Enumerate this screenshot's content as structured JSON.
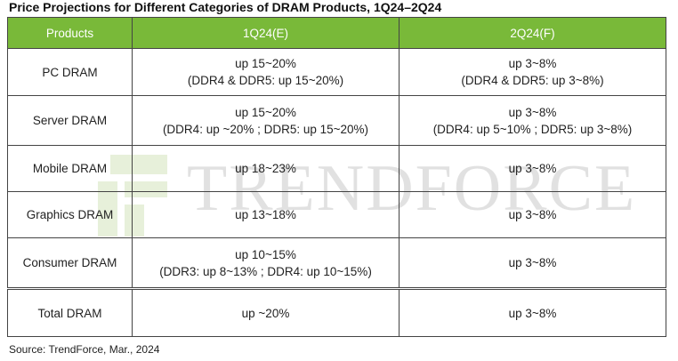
{
  "title": "Price Projections for Different Categories of DRAM Products, 1Q24–2Q24",
  "table": {
    "headers": [
      "Products",
      "1Q24(E)",
      "2Q24(F)"
    ],
    "rows": [
      {
        "product": "PC DRAM",
        "q1": [
          "up 15~20%",
          "(DDR4 & DDR5: up 15~20%)"
        ],
        "q2": [
          "up 3~8%",
          "(DDR4 & DDR5: up 3~8%)"
        ]
      },
      {
        "product": "Server DRAM",
        "q1": [
          "up 15~20%",
          "(DDR4: up ~20% ; DDR5: up 15~20%)"
        ],
        "q2": [
          "up 3~8%",
          "(DDR4: up 5~10% ; DDR5: up 3~8%)"
        ]
      },
      {
        "product": "Mobile DRAM",
        "q1": [
          "up 18~23%"
        ],
        "q2": [
          "up 3~8%"
        ]
      },
      {
        "product": "Graphics DRAM",
        "q1": [
          "up 13~18%"
        ],
        "q2": [
          "up 3~8%"
        ]
      },
      {
        "product": "Consumer DRAM",
        "q1": [
          "up 10~15%",
          "(DDR3: up 8~13% ; DDR4: up 10~15%)"
        ],
        "q2": [
          "up 3~8%"
        ]
      },
      {
        "product": "Total DRAM",
        "q1": [
          "up ~20%"
        ],
        "q2": [
          "up 3~8%"
        ]
      }
    ]
  },
  "watermark": {
    "text": "TRENDFORCE",
    "logo_icon": "trendforce-logo-icon"
  },
  "source": "Source: TrendForce, Mar., 2024",
  "colors": {
    "header_bg": "#79b939",
    "header_text": "#ffffff",
    "border": "#444444"
  }
}
